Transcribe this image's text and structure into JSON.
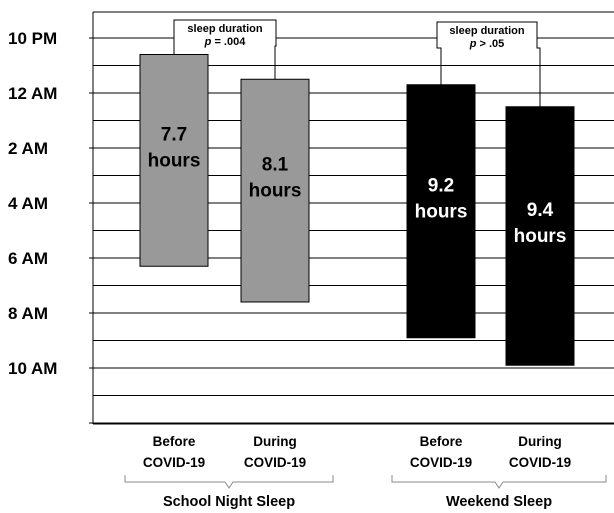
{
  "chart_data": {
    "type": "bar",
    "subtype": "floating-range",
    "y_tick_labels": [
      "10 PM",
      "12 AM",
      "2 AM",
      "4 AM",
      "6 AM",
      "8 AM",
      "10 AM"
    ],
    "y_axis_unit": "hours after 10 PM",
    "ylim": [
      0,
      14
    ],
    "grid": true,
    "categories": [
      {
        "line1": "Before",
        "line2": "COVID-19"
      },
      {
        "line1": "During",
        "line2": "COVID-19"
      },
      {
        "line1": "Before",
        "line2": "COVID-19"
      },
      {
        "line1": "During",
        "line2": "COVID-19"
      }
    ],
    "bars": [
      {
        "start": 0.6,
        "end": 8.3,
        "value_label": "7.7",
        "unit_label": "hours",
        "color": "#999999",
        "label_color": "#000000"
      },
      {
        "start": 1.5,
        "end": 9.6,
        "value_label": "8.1",
        "unit_label": "hours",
        "color": "#999999",
        "label_color": "#000000"
      },
      {
        "start": 1.7,
        "end": 10.9,
        "value_label": "9.2",
        "unit_label": "hours",
        "color": "#000000",
        "label_color": "#ffffff"
      },
      {
        "start": 2.5,
        "end": 11.9,
        "value_label": "9.4",
        "unit_label": "hours",
        "color": "#000000",
        "label_color": "#ffffff"
      }
    ],
    "groups": [
      {
        "label": "School Night Sleep",
        "bars": [
          0,
          1
        ]
      },
      {
        "label": "Weekend Sleep",
        "bars": [
          2,
          3
        ]
      }
    ],
    "annotations": [
      {
        "group": 0,
        "title": "sleep duration",
        "p_symbol": "p",
        "p_value": "= .004"
      },
      {
        "group": 1,
        "title": "sleep duration",
        "p_symbol": "p",
        "p_value": "> .05"
      }
    ]
  }
}
